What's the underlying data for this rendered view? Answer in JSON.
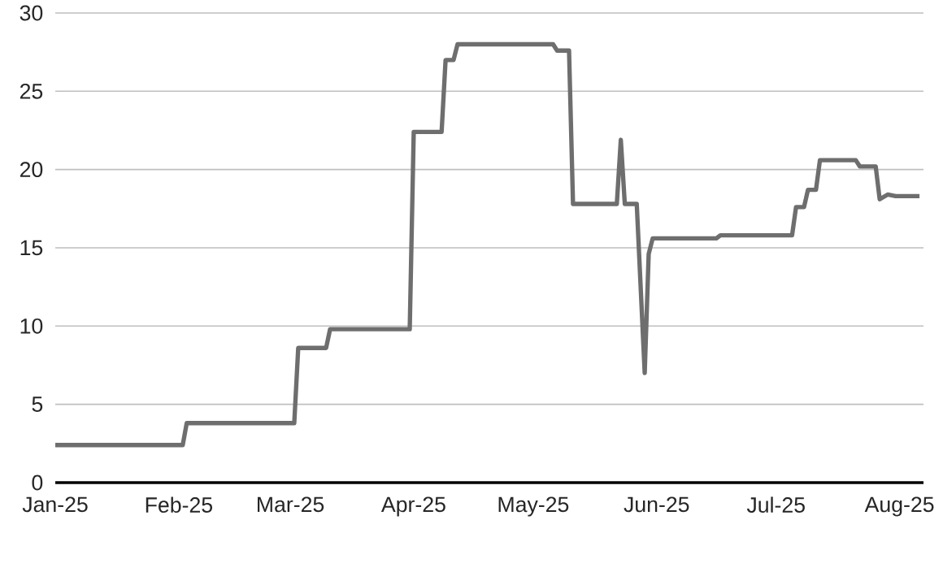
{
  "chart_data": {
    "type": "line",
    "color": "#6e6e6e",
    "grid": "y",
    "x": [
      "2025-01-01",
      "2025-02-02",
      "2025-02-03",
      "2025-03-02",
      "2025-03-03",
      "2025-03-10",
      "2025-03-11",
      "2025-03-31",
      "2025-04-01",
      "2025-04-08",
      "2025-04-09",
      "2025-04-11",
      "2025-04-12",
      "2025-05-06",
      "2025-05-07",
      "2025-05-10",
      "2025-05-11",
      "2025-05-22",
      "2025-05-23",
      "2025-05-24",
      "2025-05-27",
      "2025-05-29",
      "2025-05-30",
      "2025-05-31",
      "2025-06-16",
      "2025-06-17",
      "2025-07-05",
      "2025-07-06",
      "2025-07-08",
      "2025-07-09",
      "2025-07-11",
      "2025-07-12",
      "2025-07-21",
      "2025-07-22",
      "2025-07-26",
      "2025-07-27",
      "2025-07-29",
      "2025-07-31",
      "2025-08-06"
    ],
    "values": [
      2.4,
      2.4,
      3.8,
      3.8,
      8.6,
      8.6,
      9.8,
      9.8,
      22.4,
      22.4,
      27.0,
      27.0,
      28.0,
      28.0,
      27.6,
      27.6,
      17.8,
      17.8,
      21.9,
      17.8,
      17.8,
      7.0,
      14.6,
      15.6,
      15.6,
      15.8,
      15.8,
      17.6,
      17.6,
      18.7,
      18.7,
      20.6,
      20.6,
      20.2,
      20.2,
      18.1,
      18.4,
      18.3,
      18.3
    ],
    "xlim": [
      "2025-01-01",
      "2025-08-07"
    ],
    "xticks": [
      {
        "value": "2025-01-01",
        "label": "Jan-25"
      },
      {
        "value": "2025-02-01",
        "label": "Feb-25"
      },
      {
        "value": "2025-03-01",
        "label": "Mar-25"
      },
      {
        "value": "2025-04-01",
        "label": "Apr-25"
      },
      {
        "value": "2025-05-01",
        "label": "May-25"
      },
      {
        "value": "2025-06-01",
        "label": "Jun-25"
      },
      {
        "value": "2025-07-01",
        "label": "Jul-25"
      },
      {
        "value": "2025-08-01",
        "label": "Aug-25"
      }
    ],
    "ylim": [
      0,
      30
    ],
    "yticks": [
      0,
      5,
      10,
      15,
      20,
      25,
      30
    ]
  }
}
